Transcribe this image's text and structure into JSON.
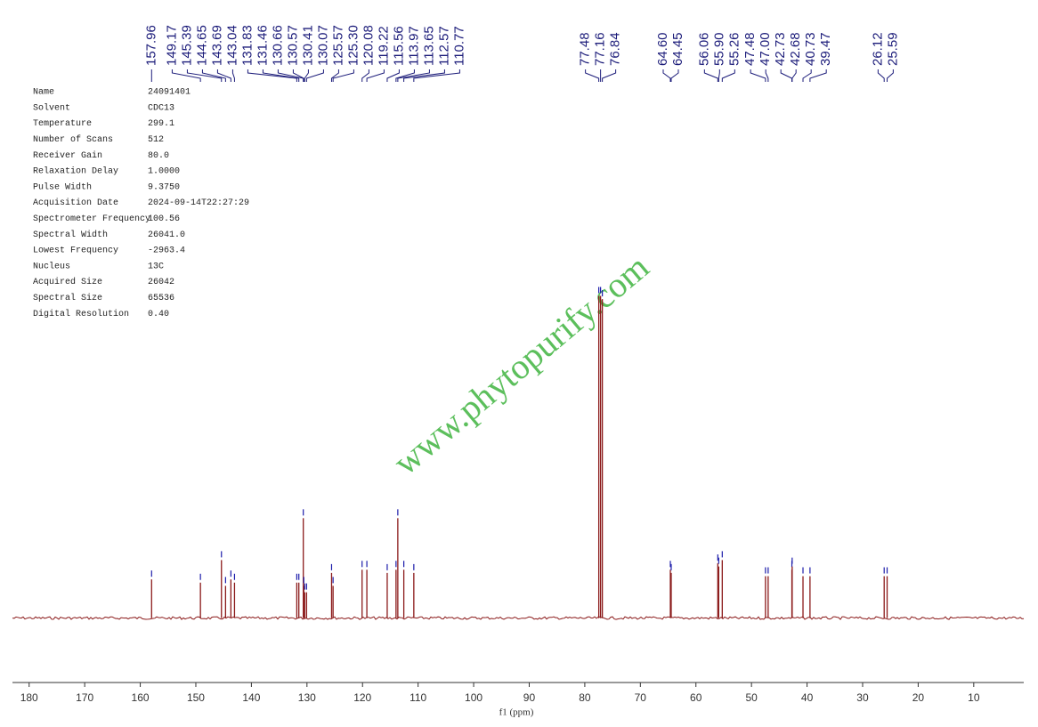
{
  "chart_data": {
    "type": "spectrum",
    "x_label": "f1 (ppm)",
    "watermark": "www.phytopurify.com",
    "x": [
      157.96,
      149.17,
      145.39,
      144.65,
      143.69,
      143.04,
      131.83,
      131.46,
      130.66,
      130.57,
      130.41,
      130.07,
      125.57,
      125.3,
      120.08,
      119.22,
      115.56,
      113.97,
      113.65,
      112.57,
      110.77,
      77.48,
      77.16,
      76.84,
      64.6,
      64.45,
      56.06,
      55.9,
      55.26,
      47.48,
      47.0,
      42.73,
      42.68,
      40.73,
      39.47,
      26.12,
      25.59
    ],
    "peak_labels": [
      "157.96",
      "149.17",
      "145.39",
      "144.65",
      "143.69",
      "143.04",
      "131.83",
      "131.46",
      "130.66",
      "130.57",
      "130.41",
      "130.07",
      "125.57",
      "125.30",
      "120.08",
      "119.22",
      "115.56",
      "113.97",
      "113.65",
      "112.57",
      "110.77",
      "77.48",
      "77.16",
      "76.84",
      "64.60",
      "64.45",
      "56.06",
      "55.90",
      "55.26",
      "47.48",
      "47.00",
      "42.73",
      "42.68",
      "40.73",
      "39.47",
      "26.12",
      "25.59"
    ],
    "values": [
      0.12,
      0.11,
      0.18,
      0.1,
      0.12,
      0.11,
      0.11,
      0.11,
      0.31,
      0.1,
      0.08,
      0.08,
      0.14,
      0.1,
      0.15,
      0.15,
      0.14,
      0.15,
      0.31,
      0.15,
      0.14,
      1.0,
      1.0,
      0.99,
      0.15,
      0.14,
      0.17,
      0.16,
      0.18,
      0.13,
      0.13,
      0.15,
      0.16,
      0.13,
      0.13,
      0.13,
      0.13
    ],
    "color": "#8b1a1a",
    "marker_color": "#1c1caa",
    "xlim": [
      183,
      1
    ],
    "xticks": [
      180,
      170,
      160,
      150,
      140,
      130,
      120,
      110,
      100,
      90,
      80,
      70,
      60,
      50,
      40,
      30,
      20,
      10
    ],
    "ylim": [
      -0.2,
      1.7
    ]
  },
  "parameters": [
    [
      "Name",
      "24091401"
    ],
    [
      "Solvent",
      "CDC13"
    ],
    [
      "Temperature",
      "299.1"
    ],
    [
      "Number of Scans",
      "512"
    ],
    [
      "Receiver Gain",
      "80.0"
    ],
    [
      "Relaxation Delay",
      "1.0000"
    ],
    [
      "Pulse Width",
      "9.3750"
    ],
    [
      "Acquisition Date",
      "2024-09-14T22:27:29"
    ],
    [
      "Spectrometer Frequency",
      "100.56"
    ],
    [
      "Spectral Width",
      "26041.0"
    ],
    [
      "Lowest Frequency",
      "-2963.4"
    ],
    [
      "Nucleus",
      "13C"
    ],
    [
      "Acquired Size",
      "26042"
    ],
    [
      "Spectral Size",
      "65536"
    ],
    [
      "Digital Resolution",
      "0.40"
    ]
  ]
}
